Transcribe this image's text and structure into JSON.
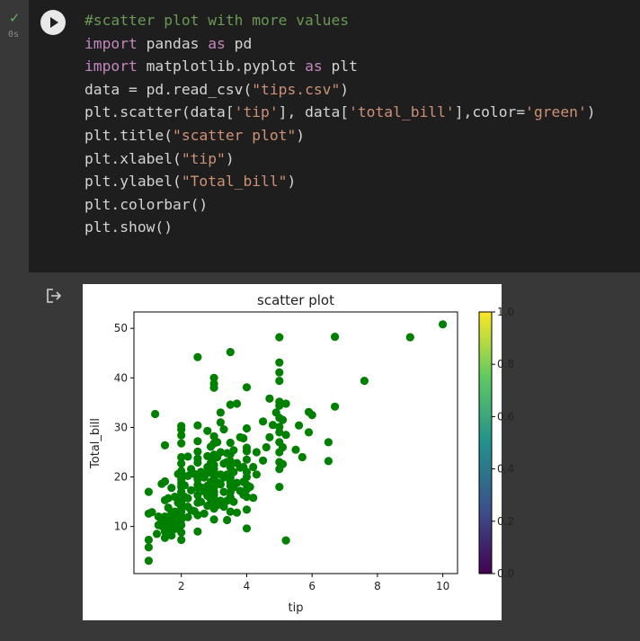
{
  "cell": {
    "status_icon": "check-icon",
    "exec_time": "0s",
    "run_icon": "play-icon",
    "output_icon": "output-redirect-icon",
    "code_lines": [
      [
        {
          "t": "comment",
          "v": "#scatter plot with more values"
        }
      ],
      [
        {
          "t": "kw",
          "v": "import"
        },
        {
          "t": "plain",
          "v": " pandas "
        },
        {
          "t": "kw",
          "v": "as"
        },
        {
          "t": "plain",
          "v": " pd"
        }
      ],
      [
        {
          "t": "kw",
          "v": "import"
        },
        {
          "t": "plain",
          "v": " matplotlib.pyplot "
        },
        {
          "t": "kw",
          "v": "as"
        },
        {
          "t": "plain",
          "v": " plt"
        }
      ],
      [
        {
          "t": "plain",
          "v": "data = pd.read_csv("
        },
        {
          "t": "str",
          "v": "\"tips.csv\""
        },
        {
          "t": "plain",
          "v": ")"
        }
      ],
      [
        {
          "t": "plain",
          "v": "plt.scatter(data["
        },
        {
          "t": "str",
          "v": "'tip'"
        },
        {
          "t": "plain",
          "v": "], data["
        },
        {
          "t": "str",
          "v": "'total_bill'"
        },
        {
          "t": "plain",
          "v": "],color="
        },
        {
          "t": "str",
          "v": "'green'"
        },
        {
          "t": "plain",
          "v": ")"
        }
      ],
      [
        {
          "t": "plain",
          "v": "plt.title("
        },
        {
          "t": "str",
          "v": "\"scatter plot\""
        },
        {
          "t": "plain",
          "v": ")"
        }
      ],
      [
        {
          "t": "plain",
          "v": "plt.xlabel("
        },
        {
          "t": "str",
          "v": "\"tip\""
        },
        {
          "t": "plain",
          "v": ")"
        }
      ],
      [
        {
          "t": "plain",
          "v": "plt.ylabel("
        },
        {
          "t": "str",
          "v": "\"Total_bill\""
        },
        {
          "t": "plain",
          "v": ")"
        }
      ],
      [
        {
          "t": "plain",
          "v": "plt.colorbar()"
        }
      ],
      [
        {
          "t": "plain",
          "v": "plt.show()"
        }
      ]
    ]
  },
  "colors": {
    "point": "#008000",
    "colorbar_stops": [
      "#440154",
      "#3b528b",
      "#21918c",
      "#5ec962",
      "#fde725"
    ]
  },
  "chart_data": {
    "type": "scatter",
    "title": "scatter plot",
    "xlabel": "tip",
    "ylabel": "Total_bill",
    "xlim": [
      0.55,
      10.45
    ],
    "ylim": [
      0.5,
      53.3
    ],
    "xticks": [
      2,
      4,
      6,
      8,
      10
    ],
    "yticks": [
      10,
      20,
      30,
      40,
      50
    ],
    "grid": false,
    "point_color": "green",
    "colorbar": {
      "range": [
        0,
        1
      ],
      "ticks": [
        "0.0",
        "0.2",
        "0.4",
        "0.6",
        "0.8",
        "1.0"
      ],
      "cmap": "viridis"
    },
    "points": [
      [
        1.0,
        3.1
      ],
      [
        1.0,
        5.8
      ],
      [
        1.0,
        7.3
      ],
      [
        1.0,
        12.6
      ],
      [
        1.0,
        17.0
      ],
      [
        1.1,
        12.9
      ],
      [
        1.2,
        32.7
      ],
      [
        1.25,
        8.5
      ],
      [
        1.3,
        10.3
      ],
      [
        1.3,
        12.0
      ],
      [
        1.4,
        10.1
      ],
      [
        1.4,
        11.2
      ],
      [
        1.4,
        18.6
      ],
      [
        1.5,
        7.7
      ],
      [
        1.5,
        9.0
      ],
      [
        1.5,
        10.5
      ],
      [
        1.5,
        12.0
      ],
      [
        1.5,
        15.3
      ],
      [
        1.5,
        26.4
      ],
      [
        1.5,
        19.1
      ],
      [
        1.6,
        9.4
      ],
      [
        1.6,
        11.0
      ],
      [
        1.6,
        13.8
      ],
      [
        1.6,
        15.7
      ],
      [
        1.7,
        8.2
      ],
      [
        1.7,
        10.1
      ],
      [
        1.7,
        11.6
      ],
      [
        1.7,
        12.7
      ],
      [
        1.7,
        17.8
      ],
      [
        1.8,
        9.5
      ],
      [
        1.8,
        11.5
      ],
      [
        1.8,
        13.0
      ],
      [
        1.8,
        16.0
      ],
      [
        1.9,
        10.3
      ],
      [
        1.9,
        12.8
      ],
      [
        1.9,
        14.8
      ],
      [
        1.9,
        15.4
      ],
      [
        1.9,
        20.6
      ],
      [
        2.0,
        7.3
      ],
      [
        2.0,
        8.8
      ],
      [
        2.0,
        10.3
      ],
      [
        2.0,
        11.4
      ],
      [
        2.0,
        12.0
      ],
      [
        2.0,
        13.0
      ],
      [
        2.0,
        13.9
      ],
      [
        2.0,
        14.8
      ],
      [
        2.0,
        15.5
      ],
      [
        2.0,
        16.5
      ],
      [
        2.0,
        17.0
      ],
      [
        2.0,
        18.0
      ],
      [
        2.0,
        18.7
      ],
      [
        2.0,
        19.4
      ],
      [
        2.0,
        20.1
      ],
      [
        2.0,
        20.7
      ],
      [
        2.0,
        21.2
      ],
      [
        2.0,
        22.7
      ],
      [
        2.0,
        24.0
      ],
      [
        2.0,
        26.8
      ],
      [
        2.0,
        28.4
      ],
      [
        2.0,
        29.6
      ],
      [
        2.0,
        30.3
      ],
      [
        2.1,
        16.0
      ],
      [
        2.1,
        18.3
      ],
      [
        2.2,
        11.9
      ],
      [
        2.2,
        14.0
      ],
      [
        2.2,
        15.7
      ],
      [
        2.2,
        20.2
      ],
      [
        2.2,
        24.1
      ],
      [
        2.3,
        13.3
      ],
      [
        2.3,
        17.3
      ],
      [
        2.3,
        21.6
      ],
      [
        2.4,
        13.1
      ],
      [
        2.4,
        20.6
      ],
      [
        2.5,
        9.0
      ],
      [
        2.5,
        12.3
      ],
      [
        2.5,
        14.8
      ],
      [
        2.5,
        16.3
      ],
      [
        2.5,
        17.8
      ],
      [
        2.5,
        18.4
      ],
      [
        2.5,
        19.5
      ],
      [
        2.5,
        20.1
      ],
      [
        2.5,
        22.9
      ],
      [
        2.5,
        23.7
      ],
      [
        2.5,
        25.1
      ],
      [
        2.5,
        27.2
      ],
      [
        2.5,
        30.4
      ],
      [
        2.5,
        44.2
      ],
      [
        2.6,
        15.0
      ],
      [
        2.6,
        17.9
      ],
      [
        2.6,
        21.0
      ],
      [
        2.7,
        12.6
      ],
      [
        2.7,
        17.1
      ],
      [
        2.7,
        19.9
      ],
      [
        2.8,
        14.2
      ],
      [
        2.8,
        16.2
      ],
      [
        2.8,
        18.2
      ],
      [
        2.8,
        20.8
      ],
      [
        2.8,
        22.0
      ],
      [
        2.8,
        24.2
      ],
      [
        2.8,
        29.3
      ],
      [
        2.9,
        15.5
      ],
      [
        2.9,
        17.5
      ],
      [
        2.9,
        19.0
      ],
      [
        2.9,
        22.8
      ],
      [
        2.9,
        26.1
      ],
      [
        3.0,
        11.4
      ],
      [
        3.0,
        13.6
      ],
      [
        3.0,
        14.8
      ],
      [
        3.0,
        15.7
      ],
      [
        3.0,
        16.4
      ],
      [
        3.0,
        17.0
      ],
      [
        3.0,
        17.9
      ],
      [
        3.0,
        18.6
      ],
      [
        3.0,
        19.3
      ],
      [
        3.0,
        20.0
      ],
      [
        3.0,
        20.9
      ],
      [
        3.0,
        21.6
      ],
      [
        3.0,
        22.4
      ],
      [
        3.0,
        23.7
      ],
      [
        3.0,
        24.5
      ],
      [
        3.0,
        26.8
      ],
      [
        3.0,
        28.2
      ],
      [
        3.0,
        38.0
      ],
      [
        3.0,
        38.8
      ],
      [
        3.0,
        40.0
      ],
      [
        3.1,
        14.3
      ],
      [
        3.1,
        18.9
      ],
      [
        3.1,
        24.0
      ],
      [
        3.1,
        27.0
      ],
      [
        3.2,
        15.2
      ],
      [
        3.2,
        18.5
      ],
      [
        3.2,
        20.5
      ],
      [
        3.2,
        25.0
      ],
      [
        3.2,
        31.0
      ],
      [
        3.2,
        33.0
      ],
      [
        3.3,
        14.0
      ],
      [
        3.3,
        17.0
      ],
      [
        3.3,
        19.9
      ],
      [
        3.3,
        22.7
      ],
      [
        3.3,
        29.6
      ],
      [
        3.4,
        11.3
      ],
      [
        3.4,
        15.2
      ],
      [
        3.4,
        20.5
      ],
      [
        3.4,
        23.0
      ],
      [
        3.4,
        24.8
      ],
      [
        3.5,
        13.0
      ],
      [
        3.5,
        15.9
      ],
      [
        3.5,
        16.9
      ],
      [
        3.5,
        18.2
      ],
      [
        3.5,
        19.0
      ],
      [
        3.5,
        19.8
      ],
      [
        3.5,
        20.7
      ],
      [
        3.5,
        22.0
      ],
      [
        3.5,
        23.2
      ],
      [
        3.5,
        24.6
      ],
      [
        3.5,
        26.9
      ],
      [
        3.5,
        34.6
      ],
      [
        3.5,
        45.2
      ],
      [
        3.6,
        15.0
      ],
      [
        3.6,
        17.9
      ],
      [
        3.6,
        21.0
      ],
      [
        3.6,
        25.4
      ],
      [
        3.7,
        12.8
      ],
      [
        3.7,
        18.8
      ],
      [
        3.7,
        22.8
      ],
      [
        3.7,
        34.8
      ],
      [
        3.8,
        17.2
      ],
      [
        3.8,
        21.9
      ],
      [
        3.8,
        28.0
      ],
      [
        3.9,
        16.4
      ],
      [
        3.9,
        19.0
      ],
      [
        3.9,
        22.0
      ],
      [
        3.9,
        27.8
      ],
      [
        4.0,
        9.6
      ],
      [
        4.0,
        13.4
      ],
      [
        4.0,
        16.0
      ],
      [
        4.0,
        17.5
      ],
      [
        4.0,
        18.4
      ],
      [
        4.0,
        20.0
      ],
      [
        4.0,
        21.0
      ],
      [
        4.0,
        23.5
      ],
      [
        4.0,
        25.2
      ],
      [
        4.0,
        25.9
      ],
      [
        4.0,
        29.8
      ],
      [
        4.0,
        38.1
      ],
      [
        4.1,
        18.0
      ],
      [
        4.2,
        15.8
      ],
      [
        4.2,
        22.0
      ],
      [
        4.3,
        20.5
      ],
      [
        4.3,
        25.0
      ],
      [
        4.5,
        23.3
      ],
      [
        4.5,
        31.2
      ],
      [
        4.6,
        26.0
      ],
      [
        4.7,
        28.0
      ],
      [
        4.7,
        35.8
      ],
      [
        4.8,
        30.5
      ],
      [
        4.9,
        33.0
      ],
      [
        5.0,
        18.0
      ],
      [
        5.0,
        21.6
      ],
      [
        5.0,
        23.0
      ],
      [
        5.0,
        25.0
      ],
      [
        5.0,
        27.0
      ],
      [
        5.0,
        29.0
      ],
      [
        5.0,
        30.1
      ],
      [
        5.0,
        31.9
      ],
      [
        5.0,
        34.4
      ],
      [
        5.0,
        35.2
      ],
      [
        5.0,
        39.4
      ],
      [
        5.0,
        41.1
      ],
      [
        5.0,
        43.1
      ],
      [
        5.0,
        48.2
      ],
      [
        5.1,
        22.6
      ],
      [
        5.1,
        26.0
      ],
      [
        5.1,
        31.5
      ],
      [
        5.2,
        7.2
      ],
      [
        5.2,
        28.5
      ],
      [
        5.2,
        34.8
      ],
      [
        5.5,
        25.5
      ],
      [
        5.6,
        30.4
      ],
      [
        5.7,
        24.0
      ],
      [
        5.9,
        29.0
      ],
      [
        5.9,
        33.1
      ],
      [
        6.0,
        32.5
      ],
      [
        6.5,
        23.2
      ],
      [
        6.5,
        27.0
      ],
      [
        6.7,
        34.2
      ],
      [
        6.7,
        48.3
      ],
      [
        7.6,
        39.4
      ],
      [
        9.0,
        48.2
      ],
      [
        10.0,
        50.8
      ]
    ]
  }
}
